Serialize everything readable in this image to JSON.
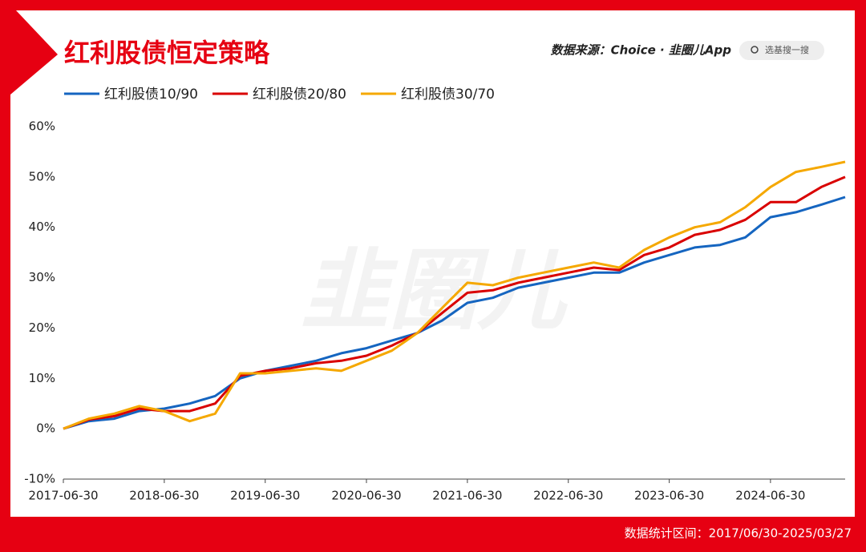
{
  "chart_data": {
    "type": "line",
    "title": "红利股债恒定策略",
    "source": "数据来源：Choice · 韭圈儿App",
    "search": "选基搜一搜",
    "footnote": "数据统计区间：2017/06/30-2025/03/27",
    "watermark": "韭圈儿",
    "x": [
      "2017-06-30",
      "2017-09-30",
      "2017-12-31",
      "2018-03-31",
      "2018-06-30",
      "2018-09-30",
      "2018-12-31",
      "2019-03-31",
      "2019-06-30",
      "2019-09-30",
      "2019-12-31",
      "2020-03-31",
      "2020-06-30",
      "2020-09-30",
      "2020-12-31",
      "2021-03-31",
      "2021-06-30",
      "2021-09-30",
      "2021-12-31",
      "2022-03-31",
      "2022-06-30",
      "2022-09-30",
      "2022-12-31",
      "2023-03-31",
      "2023-06-30",
      "2023-09-30",
      "2023-12-31",
      "2024-03-31",
      "2024-06-30",
      "2024-09-30",
      "2024-12-31",
      "2025-03-27"
    ],
    "series": [
      {
        "name": "红利股债10/90",
        "color": "#1565c0",
        "values": [
          0,
          1.5,
          2,
          3.5,
          4,
          5,
          6.5,
          10,
          11.5,
          12.5,
          13.5,
          15,
          16,
          17.5,
          19,
          21.5,
          25,
          26,
          28,
          29,
          30,
          31,
          31,
          33,
          34.5,
          36,
          36.5,
          38,
          42,
          43,
          44.5,
          46
        ]
      },
      {
        "name": "红利股债20/80",
        "color": "#d90000",
        "values": [
          0,
          1.8,
          2.5,
          4,
          3.5,
          3.5,
          5,
          10.5,
          11.5,
          12,
          13,
          13.5,
          14.5,
          16.5,
          19,
          23,
          27,
          27.5,
          29,
          30,
          31,
          32,
          31.5,
          34.5,
          36,
          38.5,
          39.5,
          41.5,
          45,
          45,
          48,
          50
        ]
      },
      {
        "name": "红利股债30/70",
        "color": "#f5a800",
        "values": [
          0,
          2,
          3,
          4.5,
          3.5,
          1.5,
          3,
          11,
          11,
          11.5,
          12,
          11.5,
          13.5,
          15.5,
          19,
          24,
          29,
          28.5,
          30,
          31,
          32,
          33,
          32,
          35.5,
          38,
          40,
          41,
          44,
          48,
          51,
          52,
          53
        ]
      }
    ],
    "xlim": [
      "2017-06-30",
      "2025-03-27"
    ],
    "xticks": [
      "2017-06-30",
      "2018-06-30",
      "2019-06-30",
      "2020-06-30",
      "2021-06-30",
      "2022-06-30",
      "2023-06-30",
      "2024-06-30"
    ],
    "ylim": [
      -10,
      60
    ],
    "yticks": [
      {
        "value": -10,
        "label": "-10%"
      },
      {
        "value": 0,
        "label": "0%"
      },
      {
        "value": 10,
        "label": "10%"
      },
      {
        "value": 20,
        "label": "20%"
      },
      {
        "value": 30,
        "label": "30%"
      },
      {
        "value": 40,
        "label": "40%"
      },
      {
        "value": 50,
        "label": "50%"
      },
      {
        "value": 60,
        "label": "60%"
      }
    ]
  }
}
